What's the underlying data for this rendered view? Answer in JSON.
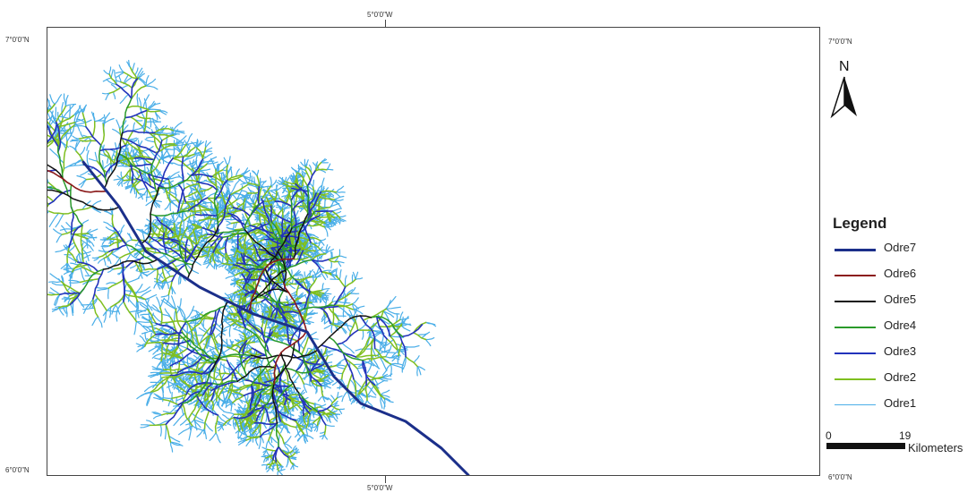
{
  "coordinates": {
    "top_lon": "5°0'0\"W",
    "bottom_lon": "5°0'0\"W",
    "left_top_lat": "7°0'0\"N",
    "left_bottom_lat": "6°0'0\"N",
    "right_top_lat": "7°0'0\"N",
    "right_bottom_lat": "6°0'0\"N"
  },
  "north_arrow": {
    "label": "N",
    "icon": "north-arrow-icon"
  },
  "legend": {
    "title": "Legend",
    "items": [
      {
        "label": "Odre7",
        "color": "#1b2f8a",
        "width": 3
      },
      {
        "label": "Odre6",
        "color": "#8b1a1a",
        "width": 1.6
      },
      {
        "label": "Odre5",
        "color": "#111111",
        "width": 1.5
      },
      {
        "label": "Odre4",
        "color": "#2a9a2a",
        "width": 1.5
      },
      {
        "label": "Odre3",
        "color": "#2233bb",
        "width": 1.6
      },
      {
        "label": "Odre2",
        "color": "#7fbf1f",
        "width": 1.5
      },
      {
        "label": "Odre1",
        "color": "#4aaee8",
        "width": 1.2
      }
    ]
  },
  "scalebar": {
    "start": "0",
    "end": "19",
    "unit": "Kilometers"
  }
}
